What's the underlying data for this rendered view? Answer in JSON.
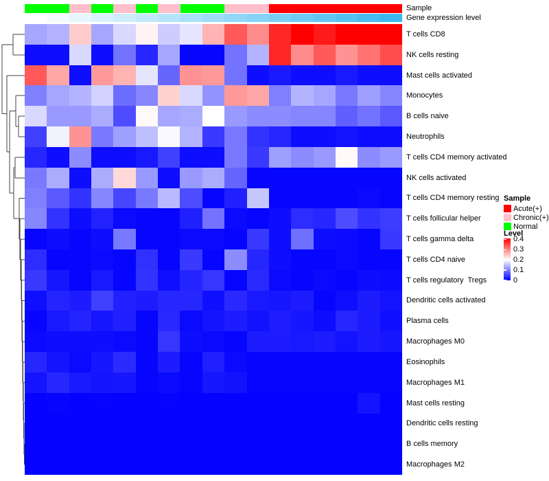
{
  "annotation_labels": {
    "sample": "Sample",
    "gene_expression": "Gene expression level"
  },
  "legend": {
    "sample_title": "Sample",
    "sample_items": [
      {
        "label": "Acute(+)",
        "color": "#FF0000"
      },
      {
        "label": "Chronic(+)",
        "color": "#FFC0CB"
      },
      {
        "label": "Normal",
        "color": "#00FF00"
      }
    ],
    "level_title": "Level",
    "level_ticks": [
      {
        "label": "0.4",
        "value": 0.4
      },
      {
        "label": "0.3",
        "value": 0.3
      },
      {
        "label": "0.2",
        "value": 0.2
      },
      {
        "label": "0.1",
        "value": 0.1
      },
      {
        "label": "0",
        "value": 0
      }
    ]
  },
  "chart_data": {
    "type": "heatmap",
    "title": "",
    "n_columns": 17,
    "rows": [
      "T cells CD8",
      "NK cells resting",
      "Mast cells activated",
      "Monocytes",
      "B cells naive",
      "Neutrophils",
      "T cells CD4 memory activated",
      "NK cells activated",
      "T cells CD4 memory resting",
      "T cells follicular helper",
      "T cells gamma delta",
      "T cells CD4 naive",
      "T cells regulatory  Tregs",
      "Dendritic cells activated",
      "Plasma cells",
      "Macrophages M0",
      "Eosinophils",
      "Macrophages M1",
      "Mast cells resting",
      "Dendritic cells resting",
      "B cells memory",
      "Macrophages M2"
    ],
    "column_sample_groups": [
      "Normal",
      "Normal",
      "Chronic(+)",
      "Normal",
      "Chronic(+)",
      "Normal",
      "Chronic(+)",
      "Normal",
      "Normal",
      "Chronic(+)",
      "Chronic(+)",
      "Acute(+)",
      "Acute(+)",
      "Acute(+)",
      "Acute(+)",
      "Acute(+)",
      "Acute(+)"
    ],
    "sample_group_colors": {
      "Acute(+)": "#FF0000",
      "Chronic(+)": "#FFC0CB",
      "Normal": "#00FF00"
    },
    "gene_expression_gradient": {
      "from": "#FFFFFF",
      "to": "#3CB8F0"
    },
    "value_range": [
      0,
      0.4
    ],
    "colormap": {
      "low": "#0000FF",
      "mid": "#FFFFFF",
      "high": "#FF0000",
      "midpoint": 0.2
    },
    "values": [
      [
        0.13,
        0.14,
        0.24,
        0.13,
        0.17,
        0.21,
        0.16,
        0.18,
        0.26,
        0.33,
        0.29,
        0.37,
        0.4,
        0.38,
        0.4,
        0.4,
        0.4
      ],
      [
        0.01,
        0.01,
        0.17,
        0.01,
        0.09,
        0.03,
        0.13,
        0.005,
        0.005,
        0.09,
        0.14,
        0.37,
        0.29,
        0.33,
        0.285,
        0.31,
        0.34
      ],
      [
        0.33,
        0.27,
        0.01,
        0.28,
        0.26,
        0.18,
        0.08,
        0.285,
        0.28,
        0.09,
        0.01,
        0.02,
        0.01,
        0.01,
        0.02,
        0.01,
        0.01
      ],
      [
        0.1,
        0.13,
        0.14,
        0.165,
        0.085,
        0.105,
        0.235,
        0.17,
        0.115,
        0.28,
        0.27,
        0.1,
        0.14,
        0.13,
        0.095,
        0.125,
        0.105
      ],
      [
        0.17,
        0.12,
        0.12,
        0.135,
        0.06,
        0.205,
        0.13,
        0.135,
        0.2,
        0.12,
        0.11,
        0.11,
        0.105,
        0.105,
        0.075,
        0.09,
        0.07
      ],
      [
        0.05,
        0.19,
        0.285,
        0.095,
        0.125,
        0.15,
        0.195,
        0.14,
        0.045,
        0.095,
        0.04,
        0.03,
        0.01,
        0.01,
        0.015,
        0.01,
        0.01
      ],
      [
        0.03,
        0.01,
        0.11,
        0.01,
        0.01,
        0.02,
        0.05,
        0.01,
        0.01,
        0.095,
        0.045,
        0.125,
        0.11,
        0.12,
        0.205,
        0.11,
        0.12
      ],
      [
        0.095,
        0.135,
        0.01,
        0.135,
        0.23,
        0.12,
        0.01,
        0.12,
        0.135,
        0.08,
        0.005,
        0.005,
        0.005,
        0.005,
        0.005,
        0.005,
        0.005
      ],
      [
        0.1,
        0.07,
        0.04,
        0.105,
        0.055,
        0.095,
        0.145,
        0.06,
        0.005,
        0.025,
        0.155,
        0.005,
        0.005,
        0.005,
        0.005,
        0.008,
        0.005
      ],
      [
        0.105,
        0.04,
        0.01,
        0.027,
        0.008,
        0.005,
        0.005,
        0.025,
        0.09,
        0.008,
        0.005,
        0.01,
        0.035,
        0.03,
        0.06,
        0.04,
        0.048
      ],
      [
        0.005,
        0.01,
        0.005,
        0.01,
        0.095,
        0.005,
        0.005,
        0.008,
        0.008,
        0.005,
        0.045,
        0.01,
        0.088,
        0.01,
        0.008,
        0.005,
        0.045
      ],
      [
        0.035,
        0.005,
        0.005,
        0.008,
        0.005,
        0.038,
        0.005,
        0.045,
        0.005,
        0.11,
        0.03,
        0.01,
        0.005,
        0.005,
        0.008,
        0.005,
        0.005
      ],
      [
        0.045,
        0.018,
        0.005,
        0.02,
        0.005,
        0.04,
        0.012,
        0.028,
        0.042,
        0.005,
        0.033,
        0.008,
        0.005,
        0.008,
        0.005,
        0.01,
        0.008
      ],
      [
        0.012,
        0.028,
        0.022,
        0.05,
        0.026,
        0.022,
        0.03,
        0.03,
        0.012,
        0.032,
        0.02,
        0.017,
        0.022,
        0.005,
        0.012,
        0.022,
        0.015
      ],
      [
        0.005,
        0.02,
        0.028,
        0.017,
        0.025,
        0.005,
        0.031,
        0.008,
        0.016,
        0.022,
        0.014,
        0.023,
        0.017,
        0.01,
        0.03,
        0.022,
        0.012
      ],
      [
        0.008,
        0.01,
        0.01,
        0.01,
        0.008,
        0.005,
        0.042,
        0.01,
        0.008,
        0.005,
        0.022,
        0.022,
        0.02,
        0.022,
        0.015,
        0.022,
        0.018
      ],
      [
        0.03,
        0.016,
        0.008,
        0.018,
        0.034,
        0.005,
        0.022,
        0.005,
        0.024,
        0.008,
        0.005,
        0.005,
        0.005,
        0.005,
        0.005,
        0.005,
        0.005
      ],
      [
        0.016,
        0.03,
        0.02,
        0.016,
        0.018,
        0.005,
        0.008,
        0.005,
        0.018,
        0.014,
        0.005,
        0.005,
        0.005,
        0.005,
        0.005,
        0.005,
        0.005
      ],
      [
        0.002,
        0.005,
        0.002,
        0.003,
        0.002,
        0.002,
        0.003,
        0.002,
        0.002,
        0.002,
        0.002,
        0.002,
        0.002,
        0.002,
        0.002,
        0.015,
        0.002
      ],
      [
        0.002,
        0.002,
        0.002,
        0.002,
        0.002,
        0.002,
        0.002,
        0.002,
        0.002,
        0.002,
        0.002,
        0.002,
        0.002,
        0.002,
        0.002,
        0.002,
        0.002
      ],
      [
        0.002,
        0.002,
        0.002,
        0.002,
        0.002,
        0.002,
        0.002,
        0.002,
        0.002,
        0.002,
        0.002,
        0.002,
        0.002,
        0.002,
        0.002,
        0.002,
        0.002
      ],
      [
        0.002,
        0.002,
        0.002,
        0.002,
        0.002,
        0.002,
        0.002,
        0.002,
        0.002,
        0.002,
        0.002,
        0.002,
        0.002,
        0.002,
        0.002,
        0.002,
        0.002
      ]
    ]
  }
}
